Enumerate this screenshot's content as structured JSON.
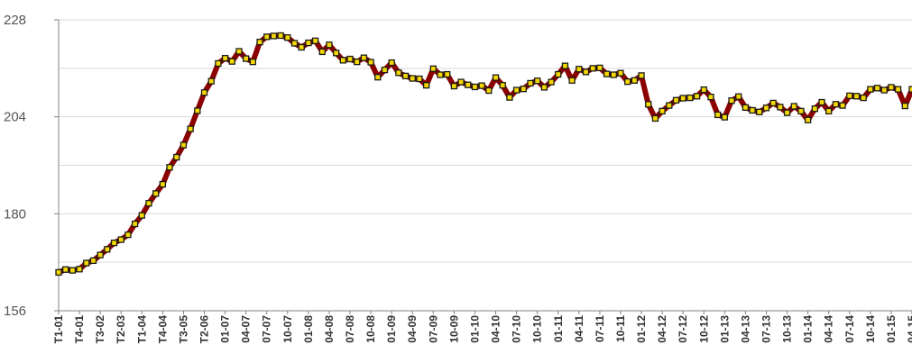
{
  "chart_data": {
    "type": "line",
    "title": "",
    "xlabel": "",
    "ylabel": "",
    "ylim": [
      156,
      228
    ],
    "yticks": [
      156,
      180,
      204,
      228
    ],
    "grid": "horizontal",
    "xtick_labels": [
      "T1-01",
      "T4-01",
      "T3-02",
      "T2-03",
      "T1-04",
      "T4-04",
      "T3-05",
      "T2-06",
      "01-07",
      "04-07",
      "07-07",
      "10-07",
      "01-08",
      "04-08",
      "07-08",
      "10-08",
      "01-09",
      "04-09",
      "07-09",
      "10-09",
      "01-10",
      "04-10",
      "07-10",
      "10-10",
      "01-11",
      "04-11",
      "07-11",
      "10-11",
      "01-12",
      "04-12",
      "07-12",
      "10-12",
      "01-13",
      "04-13",
      "07-13",
      "10-13",
      "01-14",
      "04-14",
      "07-14",
      "10-14",
      "01-15",
      "04-15"
    ],
    "series": [
      {
        "color": "#8b0000",
        "marker_color": "#f5d800",
        "values": [
          165.5,
          166.2,
          166.0,
          166.3,
          167.8,
          168.4,
          169.8,
          171.2,
          172.8,
          173.6,
          174.8,
          177.5,
          179.6,
          182.6,
          185.0,
          187.3,
          191.5,
          194.0,
          197.0,
          201.0,
          205.5,
          210.0,
          212.8,
          217.2,
          218.5,
          217.7,
          220.2,
          218.4,
          217.6,
          222.5,
          223.8,
          224.0,
          224.1,
          223.6,
          222.2,
          221.2,
          222.3,
          222.8,
          220.1,
          221.8,
          219.8,
          218.0,
          218.3,
          217.6,
          218.6,
          217.5,
          213.8,
          215.6,
          217.4,
          214.9,
          214.1,
          213.5,
          213.4,
          211.8,
          215.9,
          214.4,
          214.5,
          211.6,
          212.6,
          211.9,
          211.4,
          211.7,
          210.5,
          213.7,
          211.8,
          208.8,
          210.6,
          210.9,
          212.3,
          212.9,
          211.3,
          212.6,
          214.5,
          216.6,
          213.0,
          215.8,
          215.1,
          216.0,
          216.1,
          214.6,
          214.4,
          214.8,
          212.7,
          213.0,
          214.2,
          207.1,
          203.6,
          205.4,
          206.8,
          208.1,
          208.6,
          208.7,
          209.1,
          210.7,
          208.9,
          204.5,
          203.9,
          208.0,
          209.0,
          206.3,
          205.6,
          205.2,
          206.2,
          207.4,
          206.4,
          205.0,
          206.6,
          205.4,
          203.2,
          206.0,
          207.6,
          205.4,
          207.1,
          206.8,
          209.2,
          209.1,
          208.7,
          210.8,
          211.1,
          210.6,
          211.3,
          210.8,
          206.7,
          210.8
        ]
      }
    ]
  }
}
